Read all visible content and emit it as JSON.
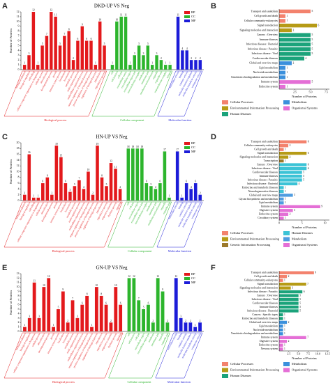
{
  "chart_data": [
    {
      "type": "bar",
      "panel": "A",
      "title": "DKD-UP VS Neg",
      "y_label": "Number of Proteins",
      "ylim": [
        0,
        12
      ],
      "yticks": [
        0,
        1,
        2,
        3,
        4,
        5,
        6,
        7,
        8,
        9,
        10,
        11,
        12
      ],
      "series": [
        {
          "name": "BP",
          "color": "#e3191c",
          "group_label": "Biological process",
          "categories": [
            "biological adhesion",
            "biological regulation",
            "cell killing",
            "cellular component organization or biogenesis",
            "cellular process",
            "detoxification",
            "developmental process",
            "growth",
            "immune system process",
            "localization",
            "locomotion",
            "metabolic process",
            "multi-organism process",
            "multicellular organismal process",
            "negative regulation of biological process",
            "positive regulation of biological process",
            "regulation of biological process",
            "reproduction",
            "reproductive process"
          ],
          "values": [
            1,
            3,
            12,
            1,
            5,
            7,
            12,
            11,
            5,
            7,
            8,
            2,
            6,
            9,
            6,
            6,
            1,
            10,
            5
          ]
        },
        {
          "name": "CC",
          "color": "#2db52d",
          "group_label": "Cellular component",
          "categories": [
            "cell",
            "cell junction",
            "cell part",
            "extracellular matrix",
            "extracellular region",
            "extracellular region part",
            "macromolecular complex",
            "membrane",
            "membrane part",
            "membrane-enclosed lumen",
            "organelle",
            "organelle part",
            "supramolecular complex",
            "synapse"
          ],
          "values": [
            1,
            10,
            11,
            11,
            1,
            3,
            5,
            3,
            5,
            1,
            3,
            2,
            1,
            1
          ]
        },
        {
          "name": "MF",
          "color": "#1c1cd8",
          "group_label": "Molecular function",
          "categories": [
            "antioxidant activity",
            "binding",
            "catalytic activity",
            "molecular function regulator",
            "molecular transducer activity",
            "transporter activity"
          ],
          "values": [
            11,
            4,
            4,
            2,
            2,
            2
          ]
        }
      ]
    },
    {
      "type": "barh",
      "panel": "B",
      "x_label": "Number of Proteins",
      "xlim": [
        0,
        8
      ],
      "xticks": [
        2.5,
        {
          "value": 5,
          "label": "5.0"
        },
        7.5
      ],
      "series": [
        {
          "name": "Cellular Processes",
          "color": "#f3826d",
          "categories": [
            "Transport and catabolism",
            "Cell growth and death",
            "Cellular community-eukaryotes"
          ],
          "values": [
            5,
            1,
            1
          ]
        },
        {
          "name": "Environmental Information Processing",
          "color": "#b69b16",
          "categories": [
            "Signal transduction",
            "Signaling molecules and interaction"
          ],
          "values": [
            6,
            2
          ]
        },
        {
          "name": "Human Diseases",
          "color": "#1ba37b",
          "categories": [
            "Cancers : Overview",
            "Immune diseases",
            "Infectious diseases : Bacterial",
            "Infectious disease : Parasitic",
            "Infectious disease : Viral",
            "Cardiovascular diseases"
          ],
          "values": [
            5,
            5,
            5,
            5,
            5,
            4
          ]
        },
        {
          "name": "Metabolism",
          "color": "#3b90dc",
          "categories": [
            "Global and overview maps",
            "Lipid metabolism",
            "Nucleotide metabolism",
            "Xenobiotics biodegradation and metabolism"
          ],
          "values": [
            2,
            1,
            1,
            1
          ]
        },
        {
          "name": "Organismal Systems",
          "color": "#e46fd6",
          "categories": [
            "Immune system",
            "Endocrine system"
          ],
          "values": [
            5,
            1
          ]
        }
      ]
    },
    {
      "type": "bar",
      "panel": "C",
      "title": "HN-UP VS Neg",
      "y_label": "Number of Proteins",
      "ylim": [
        0,
        20
      ],
      "yticks": [
        0,
        2,
        4,
        6,
        8,
        10,
        12,
        14,
        16,
        18,
        20
      ],
      "series": [
        {
          "name": "BP",
          "color": "#e3191c",
          "group_label": "Biological process",
          "categories": [
            "biological adhesion",
            "biological regulation",
            "cell killing",
            "cellular component organization or biogenesis",
            "cellular process",
            "detoxification",
            "developmental process",
            "growth",
            "immune system process",
            "localization",
            "locomotion",
            "metabolic process",
            "multi-organism process",
            "multicellular organismal process",
            "negative regulation of biological process",
            "positive regulation of biological process",
            "regulation of biological process",
            "reproduction",
            "reproductive process",
            "response to stimulus",
            "rhythmic process",
            "signaling"
          ],
          "values": [
            2,
            16,
            1,
            1,
            6,
            8,
            2,
            19,
            15,
            6,
            3,
            5,
            7,
            4,
            10,
            2,
            19,
            8,
            5,
            13,
            11,
            4
          ]
        },
        {
          "name": "CC",
          "color": "#2db52d",
          "group_label": "Cellular component",
          "categories": [
            "cell",
            "cell part",
            "extracellular region",
            "extracellular region part",
            "macromolecular complex",
            "membrane",
            "membrane part",
            "membrane-enclosed lumen",
            "organelle",
            "organelle part"
          ],
          "values": [
            18,
            18,
            18,
            18,
            6,
            5,
            4,
            6,
            17,
            1
          ]
        },
        {
          "name": "MF",
          "color": "#1c1cd8",
          "group_label": "Molecular function",
          "categories": [
            "antioxidant activity",
            "binding",
            "catalytic activity",
            "molecular function regulator",
            "molecular transducer activity",
            "transporter activity"
          ],
          "values": [
            17,
            1,
            6,
            4,
            6,
            2
          ]
        }
      ]
    },
    {
      "type": "barh",
      "panel": "D",
      "x_label": "Number of Proteins",
      "xlim": [
        0,
        11
      ],
      "xticks": [
        0,
        5,
        10
      ],
      "series": [
        {
          "name": "Cellular Processes",
          "color": "#f3826d",
          "categories": [
            "Transport and catabolism",
            "Cellular community-eukaryotes",
            "Cell growth and death"
          ],
          "values": [
            6,
            2,
            1
          ]
        },
        {
          "name": "Environmental Information Processing",
          "color": "#b69b16",
          "categories": [
            "Signal transduction",
            "Signaling molecules and interaction"
          ],
          "values": [
            6,
            2
          ]
        },
        {
          "name": "Genetic Information Processing",
          "color": "#9c7a2c",
          "categories": [
            "Transcription"
          ],
          "values": [
            1
          ]
        },
        {
          "name": "Human Diseases",
          "color": "#3cc3d6",
          "categories": [
            "Cancers : Overview",
            "Infectious disease : Viral",
            "Cardiovascular diseases",
            "Immune diseases",
            "Infectious disease : Parasitic",
            "Infectious disease : Bacterial",
            "Endocrine and metabolic diseases",
            "Neurodegenerative diseases"
          ],
          "values": [
            6,
            6,
            5,
            5,
            5,
            4,
            1,
            1
          ]
        },
        {
          "name": "Metabolism",
          "color": "#4f9ce0",
          "categories": [
            "Global and overview maps",
            "Glycan biosynthesis and metabolism",
            "Lipid metabolism"
          ],
          "values": [
            3,
            1,
            1
          ]
        },
        {
          "name": "Organismal Systems",
          "color": "#e46fd6",
          "categories": [
            "Immune system",
            "Digestive system",
            "Endocrine system",
            "Circulatory system"
          ],
          "values": [
            9,
            3,
            2,
            1
          ]
        }
      ]
    },
    {
      "type": "bar",
      "panel": "E",
      "title": "GN-UP VS Neg",
      "y_label": "Number of Proteins",
      "ylim": [
        0,
        13
      ],
      "yticks": [
        0,
        1,
        2,
        3,
        4,
        5,
        6,
        7,
        8,
        9,
        10,
        11,
        12,
        13
      ],
      "series": [
        {
          "name": "BP",
          "color": "#e3191c",
          "group_label": "Biological process",
          "categories": [
            "biological adhesion",
            "biological regulation",
            "cellular component organization or biogenesis",
            "cellular process",
            "detoxification",
            "developmental process",
            "growth",
            "immune system process",
            "localization",
            "locomotion",
            "metabolic process",
            "multi-organism process",
            "multicellular organismal process",
            "negative regulation of biological process",
            "positive regulation of biological process",
            "regulation of biological process",
            "reproduction",
            "reproductive process",
            "response to stimulus",
            "rhythmic process",
            "signaling"
          ],
          "values": [
            1,
            3,
            11,
            3,
            10,
            12,
            1,
            5,
            9,
            2,
            7,
            3,
            6,
            8,
            1,
            10,
            8,
            6,
            2,
            10,
            6
          ]
        },
        {
          "name": "CC",
          "color": "#2db52d",
          "group_label": "Cellular component",
          "categories": [
            "cell",
            "cell junction",
            "cell part",
            "extracellular region",
            "extracellular region part",
            "membrane",
            "membrane part",
            "organelle",
            "organelle part"
          ],
          "values": [
            12,
            12,
            7,
            5,
            6,
            2,
            12,
            9,
            2
          ]
        },
        {
          "name": "MF",
          "color": "#1c1cd8",
          "group_label": "Molecular function",
          "categories": [
            "antioxidant activity",
            "binding",
            "catalytic activity",
            "molecular function regulator",
            "molecular transducer activity",
            "transporter activity"
          ],
          "values": [
            12,
            3,
            2,
            2,
            1,
            2
          ]
        }
      ]
    },
    {
      "type": "barh",
      "panel": "F",
      "x_label": "Number of Proteins",
      "xlim": [
        0,
        13
      ],
      "xticks": [
        2.5,
        {
          "value": 5,
          "label": "5.0"
        },
        7.5,
        {
          "value": 10,
          "label": "10.0"
        },
        12.5
      ],
      "series": [
        {
          "name": "Cellular Processes",
          "color": "#f3826d",
          "categories": [
            "Transport and catabolism",
            "Cell growth and death",
            "Cellular community-eukaryotes"
          ],
          "values": [
            9,
            2,
            1
          ]
        },
        {
          "name": "Environmental Information Processing",
          "color": "#b69b16",
          "categories": [
            "Signal transduction",
            "Signaling molecules and interaction"
          ],
          "values": [
            7,
            3
          ]
        },
        {
          "name": "Human Diseases",
          "color": "#1ba37b",
          "categories": [
            "Infectious disease : Parasitic",
            "Cancers : Overview",
            "Infectious disease : Viral",
            "Cardiovascular diseases",
            "Immune diseases",
            "Infectious disease : Bacterial",
            "Cancers : Specific types",
            "Endocrine and metabolic diseases"
          ],
          "values": [
            6,
            5,
            5,
            5,
            5,
            5,
            1,
            1
          ]
        },
        {
          "name": "Metabolism",
          "color": "#3b90dc",
          "categories": [
            "Global and overview maps",
            "Lipid metabolism",
            "Nucleotide metabolism",
            "Xenobiotics biodegradation and metabolism"
          ],
          "values": [
            2,
            1,
            1,
            1
          ]
        },
        {
          "name": "Organismal Systems",
          "color": "#e46fd6",
          "categories": [
            "Immune system",
            "Digestive system",
            "Endocrine system",
            "Nervous system"
          ],
          "values": [
            7,
            2,
            1,
            1
          ]
        }
      ]
    }
  ]
}
